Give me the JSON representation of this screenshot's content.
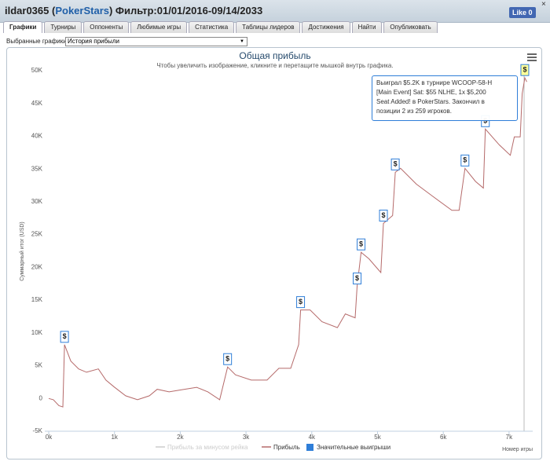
{
  "header": {
    "title_prefix": "ildar0365 (",
    "site": "PokerStars",
    "title_suffix": ") Фильтр:01/01/2016-09/14/2033",
    "like": "Like",
    "like_count": 0,
    "close": "×"
  },
  "tabs": [
    "Графики",
    "Турниры",
    "Оппоненты",
    "Любимые игры",
    "Статистика",
    "Таблицы лидеров",
    "Достижения",
    "Найти",
    "Опубликовать"
  ],
  "selector": {
    "label": "Выбранные графики:",
    "value": "История прибыли"
  },
  "chart_data": {
    "type": "line",
    "title": "Общая прибыль",
    "subtitle": "Чтобы увеличить изображение, кликните и перетащите мышкой внутрь графика.",
    "y_label": "Суммарный итог (USD)",
    "x_label": "Номер игры",
    "xlim": [
      -60,
      7360
    ],
    "ylim": [
      -5000,
      50000
    ],
    "xticks": [
      {
        "value": 0,
        "label": "0k"
      },
      {
        "value": 1000,
        "label": "1k"
      },
      {
        "value": 2000,
        "label": "2k"
      },
      {
        "value": 3000,
        "label": "3k"
      },
      {
        "value": 4000,
        "label": "4k"
      },
      {
        "value": 5000,
        "label": "5k"
      },
      {
        "value": 6000,
        "label": "6k"
      },
      {
        "value": 7000,
        "label": "7k"
      }
    ],
    "yticks": [
      {
        "value": -5000,
        "label": "-5K"
      },
      0,
      {
        "value": 5000,
        "label": "5K"
      },
      {
        "value": 10000,
        "label": "10K"
      },
      {
        "value": 15000,
        "label": "15K"
      },
      {
        "value": 20000,
        "label": "20K"
      },
      {
        "value": 25000,
        "label": "25K"
      },
      {
        "value": 30000,
        "label": "30K"
      },
      {
        "value": 35000,
        "label": "35K"
      },
      {
        "value": 40000,
        "label": "40K"
      },
      {
        "value": 45000,
        "label": "45K"
      },
      {
        "value": 50000,
        "label": "50K"
      }
    ],
    "grid": false,
    "series": [
      {
        "name": "Прибыль за минусом рейка",
        "color": "#cccccc",
        "hidden": true
      },
      {
        "name": "Прибыль",
        "color": "#b56a6a",
        "x": [
          0,
          70,
          155,
          215,
          240,
          335,
          455,
          575,
          755,
          870,
          990,
          1170,
          1350,
          1530,
          1650,
          1830,
          2010,
          2250,
          2420,
          2600,
          2720,
          2840,
          3080,
          3320,
          3500,
          3680,
          3800,
          3830,
          3975,
          4155,
          4390,
          4510,
          4660,
          4690,
          4750,
          4870,
          5050,
          5090,
          5230,
          5270,
          5350,
          5590,
          5830,
          6130,
          6240,
          6330,
          6490,
          6610,
          6640,
          6850,
          7020,
          7080,
          7170,
          7200,
          7240,
          7270
        ],
        "values": [
          0,
          -200,
          -1100,
          -1300,
          8200,
          5700,
          4500,
          4000,
          4500,
          2800,
          1800,
          400,
          -200,
          400,
          1400,
          1000,
          1300,
          1700,
          1000,
          -200,
          4800,
          3600,
          2800,
          2800,
          4600,
          4600,
          8200,
          13500,
          13500,
          11700,
          10800,
          12900,
          12300,
          17100,
          22300,
          21300,
          19200,
          26700,
          27900,
          34500,
          35100,
          32700,
          30900,
          28700,
          28700,
          35100,
          33100,
          32100,
          41100,
          38700,
          37100,
          39900,
          39900,
          46500,
          48900,
          48300
        ]
      },
      {
        "name": "Значительные выигрыши",
        "color": "#2f7ed8",
        "marker_label": "$",
        "x": [
          240,
          2720,
          3830,
          4690,
          4750,
          5090,
          5270,
          6330,
          6640,
          7240
        ],
        "values": [
          8200,
          4800,
          13500,
          17100,
          22300,
          26700,
          34500,
          35100,
          41100,
          48900
        ]
      }
    ],
    "tooltip_lines": [
      "Выиграл $5.2K в турнире WCOOP-58-H",
      "[Main Event] Sat: $55 NLHE, 1x $5,200",
      "Seat Added! в PokerStars. Закончил в",
      "позиции 2 из 259 игроков."
    ]
  }
}
